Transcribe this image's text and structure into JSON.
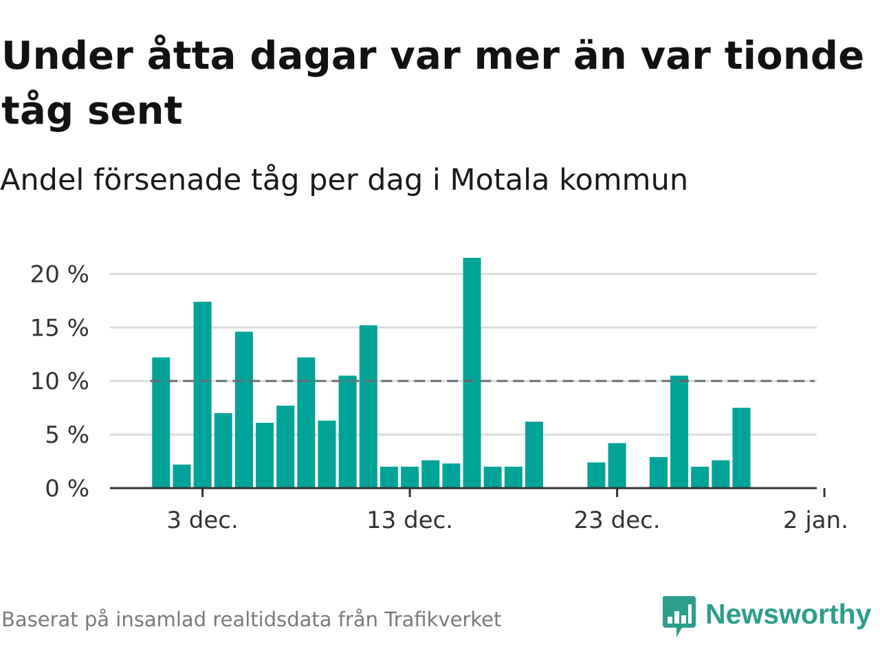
{
  "title": "Under åtta dagar var mer än var tionde tåg sent",
  "subtitle": "Andel försenade tåg per dag i Motala kommun",
  "source": "Baserat på insamlad realtidsdata från Trafikverket",
  "logo": {
    "text": "Newsworthy",
    "icon": "newsworthy-chart-bubble-icon"
  },
  "colors": {
    "bar": "#00a398",
    "threshold": "#666d75",
    "grid": "#dcdcdc",
    "axis": "#333333",
    "brand": "#2c9e8c"
  },
  "chart_data": {
    "type": "bar",
    "title": "Under åtta dagar var mer än var tionde tåg sent",
    "subtitle": "Andel försenade tåg per dag i Motala kommun",
    "xlabel": "",
    "ylabel": "",
    "x_range": [
      "2023-11-29",
      "2024-01-02"
    ],
    "x_ticks": [
      {
        "date": "2023-12-03",
        "label": "3 dec."
      },
      {
        "date": "2023-12-13",
        "label": "13 dec."
      },
      {
        "date": "2023-12-23",
        "label": "23 dec."
      },
      {
        "date": "2024-01-02",
        "label": "2 jan."
      }
    ],
    "y_ticks": [
      {
        "value": 0,
        "label": "0 %"
      },
      {
        "value": 5,
        "label": "5 %"
      },
      {
        "value": 10,
        "label": "10 %"
      },
      {
        "value": 15,
        "label": "15 %"
      },
      {
        "value": 20,
        "label": "20 %"
      }
    ],
    "ylim": [
      0,
      21.5
    ],
    "grid": true,
    "threshold": {
      "value": 10,
      "from": "2023-12-01",
      "to": "2024-01-01"
    },
    "bars": [
      {
        "date": "2023-12-01",
        "value": 12.2
      },
      {
        "date": "2023-12-02",
        "value": 2.2
      },
      {
        "date": "2023-12-03",
        "value": 17.4
      },
      {
        "date": "2023-12-04",
        "value": 7.0
      },
      {
        "date": "2023-12-05",
        "value": 14.6
      },
      {
        "date": "2023-12-06",
        "value": 6.1
      },
      {
        "date": "2023-12-07",
        "value": 7.7
      },
      {
        "date": "2023-12-08",
        "value": 12.2
      },
      {
        "date": "2023-12-09",
        "value": 6.3
      },
      {
        "date": "2023-12-10",
        "value": 10.5
      },
      {
        "date": "2023-12-11",
        "value": 15.2
      },
      {
        "date": "2023-12-12",
        "value": 2.0
      },
      {
        "date": "2023-12-13",
        "value": 2.0
      },
      {
        "date": "2023-12-14",
        "value": 2.6
      },
      {
        "date": "2023-12-15",
        "value": 2.3
      },
      {
        "date": "2023-12-16",
        "value": 21.5
      },
      {
        "date": "2023-12-17",
        "value": 2.0
      },
      {
        "date": "2023-12-18",
        "value": 2.0
      },
      {
        "date": "2023-12-19",
        "value": 6.2
      },
      {
        "date": "2023-12-22",
        "value": 2.4
      },
      {
        "date": "2023-12-23",
        "value": 4.2
      },
      {
        "date": "2023-12-25",
        "value": 2.9
      },
      {
        "date": "2023-12-26",
        "value": 10.5
      },
      {
        "date": "2023-12-27",
        "value": 2.0
      },
      {
        "date": "2023-12-28",
        "value": 2.6
      },
      {
        "date": "2023-12-29",
        "value": 7.5
      }
    ]
  }
}
